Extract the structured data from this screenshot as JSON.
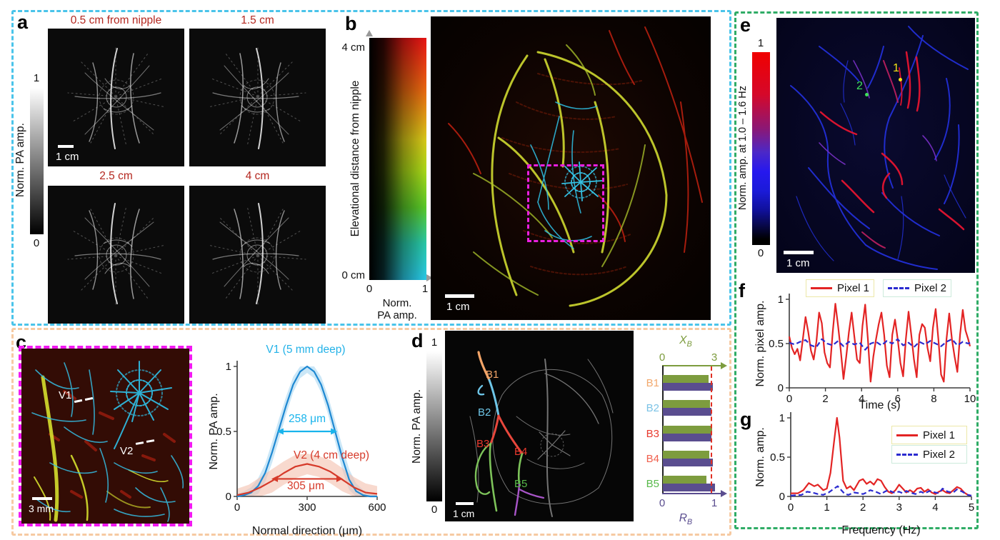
{
  "theme": {
    "group_border_topleft": "#4ac4ea",
    "group_border_bottomleft": "#f6caa2",
    "group_border_right": "#2fac66",
    "roi_magenta": "#ea1fe0",
    "panel_a_title_red": "#b4271f",
    "pixel1_red": "#e32424",
    "pixel2_blue": "#2b2bd0",
    "marker1_yellow": "#f5e614",
    "marker2_green": "#3ee05a"
  },
  "panels": {
    "a": {
      "label": "a",
      "titles": [
        "0.5 cm from nipple",
        "1.5 cm",
        "2.5 cm",
        "4 cm"
      ],
      "colorbar": {
        "max": "1",
        "min": "0",
        "label": "Norm. PA amp."
      },
      "scalebar": "1 cm"
    },
    "b": {
      "label": "b",
      "colorbar": {
        "y_label": "Elevational distance from nipple",
        "y_max": "4 cm",
        "y_min": "0 cm",
        "x_min": "0",
        "x_max": "1",
        "x_label_line1": "Norm.",
        "x_label_line2": "PA amp."
      },
      "scalebar": "1 cm"
    },
    "c": {
      "label": "c",
      "vessel1_label": "V1",
      "vessel2_label": "V2",
      "scalebar": "3 mm"
    },
    "d": {
      "label": "d",
      "colorbar": {
        "max": "1",
        "min": "0",
        "label": "Norm. PA amp."
      },
      "branch_labels": [
        "B1",
        "B2",
        "B3",
        "B4",
        "B5"
      ],
      "branch_label_colors": [
        "#f2a468",
        "#6ec6e8",
        "#e8392e",
        "#e8392e",
        "#58b94a"
      ],
      "scalebar": "1 cm"
    },
    "e": {
      "label": "e",
      "colorbar": {
        "max": "1",
        "min": "0",
        "label": "Norm. amp. at 1.0 – 1.6 Hz"
      },
      "marker1": "1",
      "marker2": "2",
      "scalebar": "1 cm"
    },
    "f": {
      "label": "f"
    },
    "g": {
      "label": "g"
    }
  },
  "chart_data": [
    {
      "id": "c_profiles",
      "type": "line",
      "xlabel": "Normal direction (μm)",
      "ylabel": "Norm. PA amp.",
      "xlim": [
        0,
        600
      ],
      "ylim": [
        0,
        1
      ],
      "xticks": [
        0,
        300,
        600
      ],
      "yticks": [
        0,
        0.5,
        1
      ],
      "grid": false,
      "series": [
        {
          "name": "V1 (5 mm deep)",
          "color": "#1e88d2",
          "band_color": "#a9d7f2",
          "x": [
            0,
            30,
            60,
            90,
            120,
            150,
            180,
            210,
            240,
            270,
            300,
            330,
            360,
            390,
            420,
            450,
            480,
            510,
            540,
            570,
            600
          ],
          "y": [
            0,
            0.01,
            0.03,
            0.08,
            0.18,
            0.34,
            0.52,
            0.7,
            0.86,
            0.96,
            1.0,
            0.96,
            0.86,
            0.7,
            0.5,
            0.3,
            0.13,
            0.04,
            0.01,
            0,
            0
          ],
          "band": [
            0.02,
            0.03,
            0.04,
            0.06,
            0.07,
            0.08,
            0.08,
            0.07,
            0.06,
            0.05,
            0.05,
            0.05,
            0.06,
            0.07,
            0.08,
            0.09,
            0.08,
            0.06,
            0.04,
            0.03,
            0.02
          ]
        },
        {
          "name": "V2 (4 cm deep)",
          "color": "#d63a2a",
          "band_color": "#f3bfae",
          "x": [
            0,
            50,
            100,
            150,
            200,
            250,
            300,
            350,
            400,
            450,
            500,
            550,
            600
          ],
          "y": [
            0.01,
            0.03,
            0.07,
            0.12,
            0.18,
            0.23,
            0.25,
            0.23,
            0.19,
            0.13,
            0.07,
            0.03,
            0.02
          ],
          "band": [
            0.05,
            0.06,
            0.08,
            0.09,
            0.09,
            0.09,
            0.08,
            0.08,
            0.09,
            0.09,
            0.08,
            0.07,
            0.06
          ]
        }
      ],
      "arrows": [
        {
          "y": 0.5,
          "x1": 171,
          "x2": 429,
          "color": "#18b4ec"
        },
        {
          "y": 0.135,
          "x1": 147,
          "x2": 453,
          "color": "#d63a2a"
        }
      ],
      "annotations": {
        "v1_title": {
          "text": "V1 (5 mm deep)",
          "color": "#23b2e8"
        },
        "v2_title": {
          "text": "V2 (4 cm deep)",
          "color": "#d63a2a"
        },
        "v1_width": {
          "text": "258 μm",
          "color": "#18b4ec"
        },
        "v2_width": {
          "text": "305 μm",
          "color": "#d63a2a"
        }
      }
    },
    {
      "id": "d_branch_bars",
      "type": "bar",
      "orientation": "horizontal",
      "categories": [
        "B1",
        "B2",
        "B3",
        "B4",
        "B5"
      ],
      "category_colors": [
        "#f2a96e",
        "#7cc3e6",
        "#e83a2e",
        "#f0604e",
        "#58b94a"
      ],
      "series": [
        {
          "name": "X_B",
          "axis": "top",
          "axis_range": [
            0,
            3
          ],
          "color": "#7d9c3e",
          "values": [
            2.65,
            2.72,
            2.82,
            2.66,
            2.5
          ]
        },
        {
          "name": "R_B",
          "axis": "bottom",
          "axis_range": [
            0,
            1
          ],
          "color": "#5a4d8f",
          "values": [
            0.96,
            0.93,
            0.93,
            0.96,
            1.0
          ]
        }
      ],
      "top_axis": {
        "label_main": "X",
        "label_sub": "B",
        "ticks": [
          "0",
          "3"
        ],
        "color": "#7d9c3e"
      },
      "bottom_axis": {
        "label_main": "R",
        "label_sub": "B",
        "ticks": [
          "0",
          "1"
        ],
        "color": "#5a4d8f"
      },
      "reference_line": {
        "axis": "bottom",
        "value": 0.945,
        "color": "#e03024",
        "style": "dashed"
      }
    },
    {
      "id": "f_time",
      "type": "line",
      "xlabel": "Time (s)",
      "ylabel": "Norm. pixel amp.",
      "xlim": [
        0,
        10
      ],
      "ylim": [
        0,
        1
      ],
      "xticks": [
        0,
        2,
        4,
        6,
        8,
        10
      ],
      "yticks": [
        0,
        0.5,
        1
      ],
      "legend": [
        {
          "label": "Pixel 1",
          "color": "#e32424",
          "dash": "solid",
          "box_border": "#ece8a8"
        },
        {
          "label": "Pixel 2",
          "color": "#2b2bd0",
          "dash": "dashed",
          "box_border": "#cdeadb"
        }
      ],
      "series": [
        {
          "name": "Pixel 1",
          "color": "#e32424",
          "dash": "solid",
          "x": [
            0,
            0.15,
            0.3,
            0.45,
            0.6,
            0.75,
            0.9,
            1.05,
            1.2,
            1.35,
            1.5,
            1.65,
            1.8,
            1.95,
            2.1,
            2.25,
            2.4,
            2.55,
            2.7,
            2.85,
            3.0,
            3.15,
            3.3,
            3.45,
            3.6,
            3.75,
            3.9,
            4.05,
            4.2,
            4.35,
            4.5,
            4.65,
            4.8,
            4.95,
            5.1,
            5.25,
            5.4,
            5.55,
            5.7,
            5.85,
            6.0,
            6.15,
            6.3,
            6.45,
            6.6,
            6.75,
            6.9,
            7.05,
            7.2,
            7.35,
            7.5,
            7.65,
            7.8,
            7.95,
            8.1,
            8.25,
            8.4,
            8.55,
            8.7,
            8.85,
            9.0,
            9.15,
            9.3,
            9.45,
            9.6,
            9.75,
            9.9,
            10
          ],
          "y": [
            0.58,
            0.45,
            0.38,
            0.44,
            0.31,
            0.55,
            0.8,
            0.63,
            0.42,
            0.32,
            0.52,
            0.85,
            0.73,
            0.4,
            0.28,
            0.23,
            0.62,
            0.95,
            0.7,
            0.42,
            0.1,
            0.35,
            0.63,
            0.85,
            0.58,
            0.32,
            0.28,
            0.7,
            0.94,
            0.55,
            0.07,
            0.35,
            0.55,
            0.72,
            0.85,
            0.6,
            0.25,
            0.12,
            0.6,
            0.77,
            0.55,
            0.28,
            0.13,
            0.55,
            0.86,
            0.6,
            0.32,
            0.12,
            0.6,
            0.72,
            0.68,
            0.45,
            0.3,
            0.68,
            0.89,
            0.55,
            0.15,
            0.07,
            0.55,
            0.84,
            0.55,
            0.35,
            0.18,
            0.6,
            0.88,
            0.65,
            0.55,
            0.47
          ]
        },
        {
          "name": "Pixel 2",
          "color": "#2b2bd0",
          "dash": "dashed",
          "x": [
            0,
            0.3,
            0.6,
            0.9,
            1.2,
            1.5,
            1.8,
            2.1,
            2.4,
            2.7,
            3.0,
            3.3,
            3.6,
            3.9,
            4.2,
            4.5,
            4.8,
            5.1,
            5.4,
            5.7,
            6.0,
            6.3,
            6.6,
            6.9,
            7.2,
            7.5,
            7.8,
            8.1,
            8.4,
            8.7,
            9.0,
            9.3,
            9.6,
            9.9,
            10
          ],
          "y": [
            0.51,
            0.49,
            0.52,
            0.54,
            0.48,
            0.46,
            0.55,
            0.5,
            0.48,
            0.53,
            0.47,
            0.52,
            0.49,
            0.51,
            0.43,
            0.5,
            0.52,
            0.48,
            0.53,
            0.5,
            0.55,
            0.48,
            0.51,
            0.46,
            0.52,
            0.49,
            0.53,
            0.5,
            0.47,
            0.52,
            0.55,
            0.48,
            0.52,
            0.5,
            0.51
          ]
        }
      ]
    },
    {
      "id": "g_freq",
      "type": "line",
      "xlabel": "Frequency (Hz)",
      "ylabel": "Norm. amp.",
      "xlim": [
        0,
        5
      ],
      "ylim": [
        0,
        1
      ],
      "xticks": [
        0,
        1,
        2,
        3,
        4,
        5
      ],
      "yticks": [
        0,
        0.5,
        1
      ],
      "peak_note": "Pixel 1 spectrum peaks at ~1.3 Hz with normalized amplitude 1.0",
      "legend": [
        {
          "label": "Pixel 1",
          "color": "#e32424",
          "dash": "solid",
          "box_border": "#ece8a8"
        },
        {
          "label": "Pixel 2",
          "color": "#2b2bd0",
          "dash": "dashed",
          "box_border": "#cdeadb"
        }
      ],
      "series": [
        {
          "name": "Pixel 1",
          "color": "#e32424",
          "dash": "solid",
          "x": [
            0,
            0.2,
            0.35,
            0.5,
            0.65,
            0.75,
            0.9,
            1.0,
            1.1,
            1.2,
            1.28,
            1.35,
            1.45,
            1.55,
            1.65,
            1.75,
            1.9,
            2.0,
            2.1,
            2.2,
            2.3,
            2.4,
            2.5,
            2.6,
            2.7,
            2.8,
            2.9,
            3.0,
            3.1,
            3.2,
            3.3,
            3.4,
            3.5,
            3.6,
            3.7,
            3.8,
            3.9,
            4.0,
            4.1,
            4.2,
            4.3,
            4.4,
            4.5,
            4.6,
            4.7,
            4.8,
            4.9,
            5.0
          ],
          "y": [
            0.04,
            0.04,
            0.08,
            0.17,
            0.13,
            0.15,
            0.08,
            0.1,
            0.3,
            0.7,
            1.0,
            0.75,
            0.2,
            0.1,
            0.13,
            0.08,
            0.2,
            0.22,
            0.16,
            0.19,
            0.15,
            0.22,
            0.2,
            0.12,
            0.06,
            0.04,
            0.08,
            0.15,
            0.1,
            0.05,
            0.08,
            0.05,
            0.1,
            0.11,
            0.06,
            0.09,
            0.05,
            0.03,
            0.06,
            0.08,
            0.05,
            0.04,
            0.08,
            0.12,
            0.1,
            0.05,
            0.02,
            0.01
          ]
        },
        {
          "name": "Pixel 2",
          "color": "#2b2bd0",
          "dash": "dashed",
          "x": [
            0,
            0.3,
            0.45,
            0.6,
            0.75,
            0.9,
            1.05,
            1.2,
            1.3,
            1.4,
            1.5,
            1.6,
            1.75,
            1.9,
            2.0,
            2.1,
            2.2,
            2.35,
            2.5,
            2.6,
            2.7,
            2.85,
            3.0,
            3.1,
            3.2,
            3.3,
            3.45,
            3.6,
            3.7,
            3.85,
            4.0,
            4.1,
            4.2,
            4.35,
            4.5,
            4.6,
            4.75,
            4.9,
            5.0
          ],
          "y": [
            0.01,
            0.02,
            0.06,
            0.05,
            0.03,
            0.02,
            0.05,
            0.1,
            0.13,
            0.08,
            0.03,
            0.02,
            0.05,
            0.04,
            0.03,
            0.05,
            0.08,
            0.06,
            0.03,
            0.06,
            0.08,
            0.05,
            0.06,
            0.04,
            0.07,
            0.05,
            0.03,
            0.06,
            0.04,
            0.07,
            0.05,
            0.04,
            0.1,
            0.06,
            0.05,
            0.09,
            0.06,
            0.02,
            0.01
          ]
        }
      ]
    }
  ]
}
